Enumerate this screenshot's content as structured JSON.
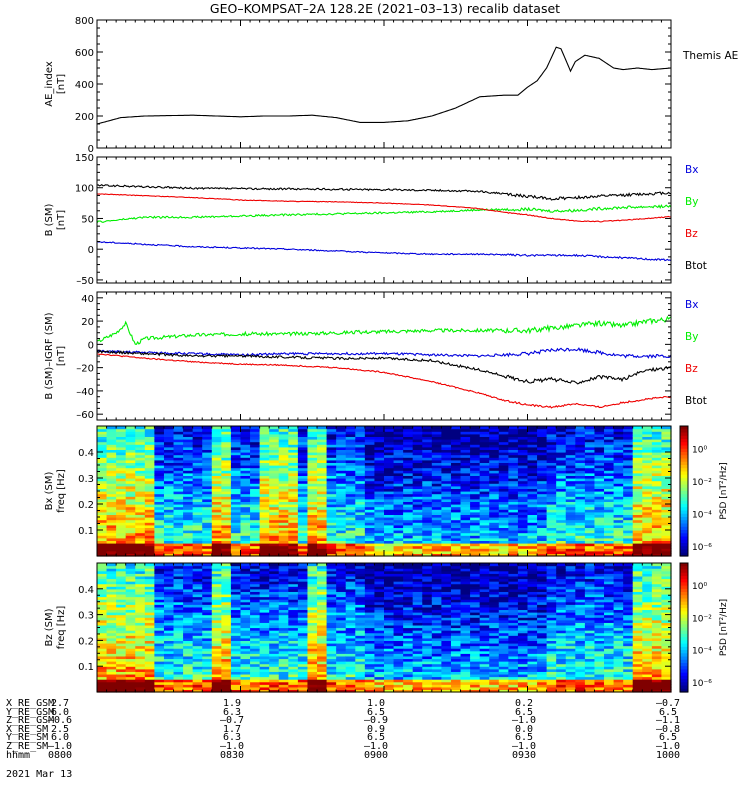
{
  "chart_data": {
    "title": "GEO–KOMPSAT–2A 128.2E (2021–03–13) recalib dataset",
    "x_range": [
      "0800",
      "1000"
    ],
    "panels": [
      {
        "type": "line",
        "ylabel": "AE_index\n[nT]",
        "ylim": [
          0,
          800
        ],
        "yticks": [
          0,
          200,
          400,
          600,
          800
        ],
        "legend": [
          "Themis AE"
        ],
        "series": [
          {
            "name": "Themis AE",
            "color": "#000000",
            "x_min": [
              0,
              5,
              10,
              20,
              30,
              35,
              40,
              45,
              50,
              55,
              60,
              65,
              70,
              75,
              80,
              85,
              88,
              90,
              92,
              94,
              96,
              97,
              99,
              100,
              102,
              105,
              108,
              110,
              113,
              116,
              120
            ],
            "values": [
              150,
              190,
              200,
              205,
              195,
              200,
              200,
              205,
              190,
              160,
              160,
              170,
              200,
              250,
              320,
              330,
              330,
              380,
              420,
              500,
              630,
              620,
              480,
              540,
              580,
              560,
              500,
              490,
              500,
              490,
              500
            ]
          }
        ]
      },
      {
        "type": "line",
        "ylabel": "B (SM)\n[nT]",
        "ylim": [
          -55,
          150
        ],
        "yticks": [
          -50,
          0,
          50,
          100,
          150
        ],
        "legend": [
          "Bx",
          "By",
          "Bz",
          "Btot"
        ],
        "series": [
          {
            "name": "Btot",
            "color": "#000000",
            "noise": 3,
            "x_min": [
              0,
              20,
              40,
              60,
              70,
              80,
              85,
              90,
              95,
              100,
              105,
              110,
              115,
              120
            ],
            "values": [
              104,
              99,
              98,
              97,
              96,
              94,
              90,
              86,
              82,
              84,
              86,
              88,
              90,
              92
            ]
          },
          {
            "name": "By",
            "color": "#00ee00",
            "noise": 3,
            "x_min": [
              0,
              10,
              20,
              40,
              60,
              70,
              80,
              90,
              95,
              100,
              105,
              110,
              115,
              120
            ],
            "values": [
              44,
              52,
              52,
              56,
              59,
              61,
              64,
              65,
              62,
              63,
              66,
              68,
              69,
              70
            ]
          },
          {
            "name": "Bz",
            "color": "#ee0000",
            "noise": 1,
            "x_min": [
              0,
              10,
              20,
              30,
              40,
              50,
              60,
              70,
              80,
              85,
              90,
              95,
              100,
              105,
              110,
              115,
              120
            ],
            "values": [
              90,
              87,
              84,
              80,
              78,
              77,
              75,
              72,
              66,
              60,
              56,
              50,
              46,
              45,
              47,
              50,
              53
            ]
          },
          {
            "name": "Bx",
            "color": "#0000dd",
            "noise": 2,
            "x_min": [
              0,
              10,
              20,
              30,
              40,
              50,
              60,
              70,
              80,
              90,
              100,
              110,
              120
            ],
            "values": [
              12,
              8,
              4,
              2,
              0,
              -3,
              -6,
              -8,
              -8,
              -10,
              -10,
              -14,
              -18
            ]
          }
        ]
      },
      {
        "type": "line",
        "ylabel": "B (SM)–IGRF (SM)\n[nT]",
        "ylim": [
          -65,
          45
        ],
        "yticks": [
          -60,
          -40,
          -20,
          0,
          20,
          40
        ],
        "legend": [
          "Bx",
          "By",
          "Bz",
          "Btot"
        ],
        "series": [
          {
            "name": "By",
            "color": "#00ee00",
            "noise": 3,
            "x_min": [
              0,
              4,
              6,
              8,
              10,
              20,
              30,
              40,
              50,
              60,
              70,
              80,
              90,
              100,
              105,
              110,
              115,
              120
            ],
            "values": [
              2,
              10,
              18,
              0,
              5,
              8,
              9,
              9,
              10,
              11,
              12,
              12,
              12,
              16,
              18,
              16,
              20,
              22
            ]
          },
          {
            "name": "Bx",
            "color": "#0000dd",
            "noise": 2,
            "x_min": [
              0,
              10,
              20,
              30,
              40,
              50,
              60,
              70,
              80,
              90,
              95,
              100,
              105,
              110,
              120
            ],
            "values": [
              -6,
              -7,
              -8,
              -9,
              -8,
              -8,
              -8,
              -9,
              -10,
              -8,
              -5,
              -4,
              -7,
              -10,
              -10
            ]
          },
          {
            "name": "Btot",
            "color": "#000000",
            "noise": 2,
            "x_min": [
              0,
              10,
              20,
              30,
              40,
              50,
              60,
              70,
              75,
              80,
              85,
              90,
              95,
              100,
              105,
              110,
              115,
              120
            ],
            "values": [
              -6,
              -8,
              -10,
              -10,
              -11,
              -12,
              -12,
              -14,
              -18,
              -22,
              -27,
              -32,
              -30,
              -33,
              -28,
              -30,
              -22,
              -20
            ]
          },
          {
            "name": "Bz",
            "color": "#ee0000",
            "noise": 1,
            "x_min": [
              0,
              10,
              20,
              30,
              40,
              50,
              60,
              70,
              80,
              85,
              90,
              95,
              100,
              105,
              110,
              115,
              120
            ],
            "values": [
              -8,
              -12,
              -15,
              -17,
              -18,
              -20,
              -24,
              -32,
              -42,
              -48,
              -52,
              -54,
              -51,
              -54,
              -50,
              -47,
              -45
            ]
          }
        ]
      },
      {
        "type": "heatmap",
        "ylabel": "Bx (SM)\nfreq [Hz]",
        "ylim": [
          0,
          0.5
        ],
        "yticks": [
          0.1,
          0.2,
          0.3,
          0.4
        ],
        "colorbar_label": "PSD [nT²/Hz]",
        "colorbar_ticks": [
          "10⁰",
          "10⁻²",
          "10⁻⁴",
          "10⁻⁶"
        ],
        "high_power_minutes": [
          [
            0,
            12
          ],
          [
            24,
            27
          ],
          [
            34,
            42
          ],
          [
            44,
            48
          ],
          [
            112,
            120
          ]
        ]
      },
      {
        "type": "heatmap",
        "ylabel": "Bz (SM)\nfreq [Hz]",
        "ylim": [
          0,
          0.5
        ],
        "yticks": [
          0.1,
          0.2,
          0.3,
          0.4
        ],
        "colorbar_label": "PSD [nT²/Hz]",
        "colorbar_ticks": [
          "10⁰",
          "10⁻²",
          "10⁻⁴",
          "10⁻⁶"
        ],
        "high_power_minutes": [
          [
            0,
            12
          ],
          [
            24,
            27
          ],
          [
            44,
            48
          ],
          [
            112,
            120
          ]
        ]
      }
    ],
    "x_ticks_minutes": [
      0,
      30,
      60,
      90,
      120
    ],
    "ephemeris": {
      "rows": [
        {
          "label": "X_RE_GSM",
          "values": [
            "2.7",
            "1.9",
            "1.0",
            "0.2",
            "–0.7"
          ]
        },
        {
          "label": "Y_RE_GSM",
          "values": [
            "6.0",
            "6.3",
            "6.5",
            "6.5",
            "6.5"
          ]
        },
        {
          "label": "Z_RE_GSM",
          "values": [
            "–0.6",
            "–0.7",
            "–0.9",
            "–1.0",
            "–1.1"
          ]
        },
        {
          "label": "X_RE_SM",
          "values": [
            "2.5",
            "1.7",
            "0.9",
            "0.0",
            "–0.8"
          ]
        },
        {
          "label": "Y_RE_SM",
          "values": [
            "6.0",
            "6.3",
            "6.5",
            "6.5",
            "6.5"
          ]
        },
        {
          "label": "Z_RE_SM",
          "values": [
            "–1.0",
            "–1.0",
            "–1.0",
            "–1.0",
            "–1.0"
          ]
        },
        {
          "label": "hhmm",
          "values": [
            "0800",
            "0830",
            "0900",
            "0930",
            "1000"
          ]
        }
      ],
      "date": "2021 Mar 13"
    }
  }
}
